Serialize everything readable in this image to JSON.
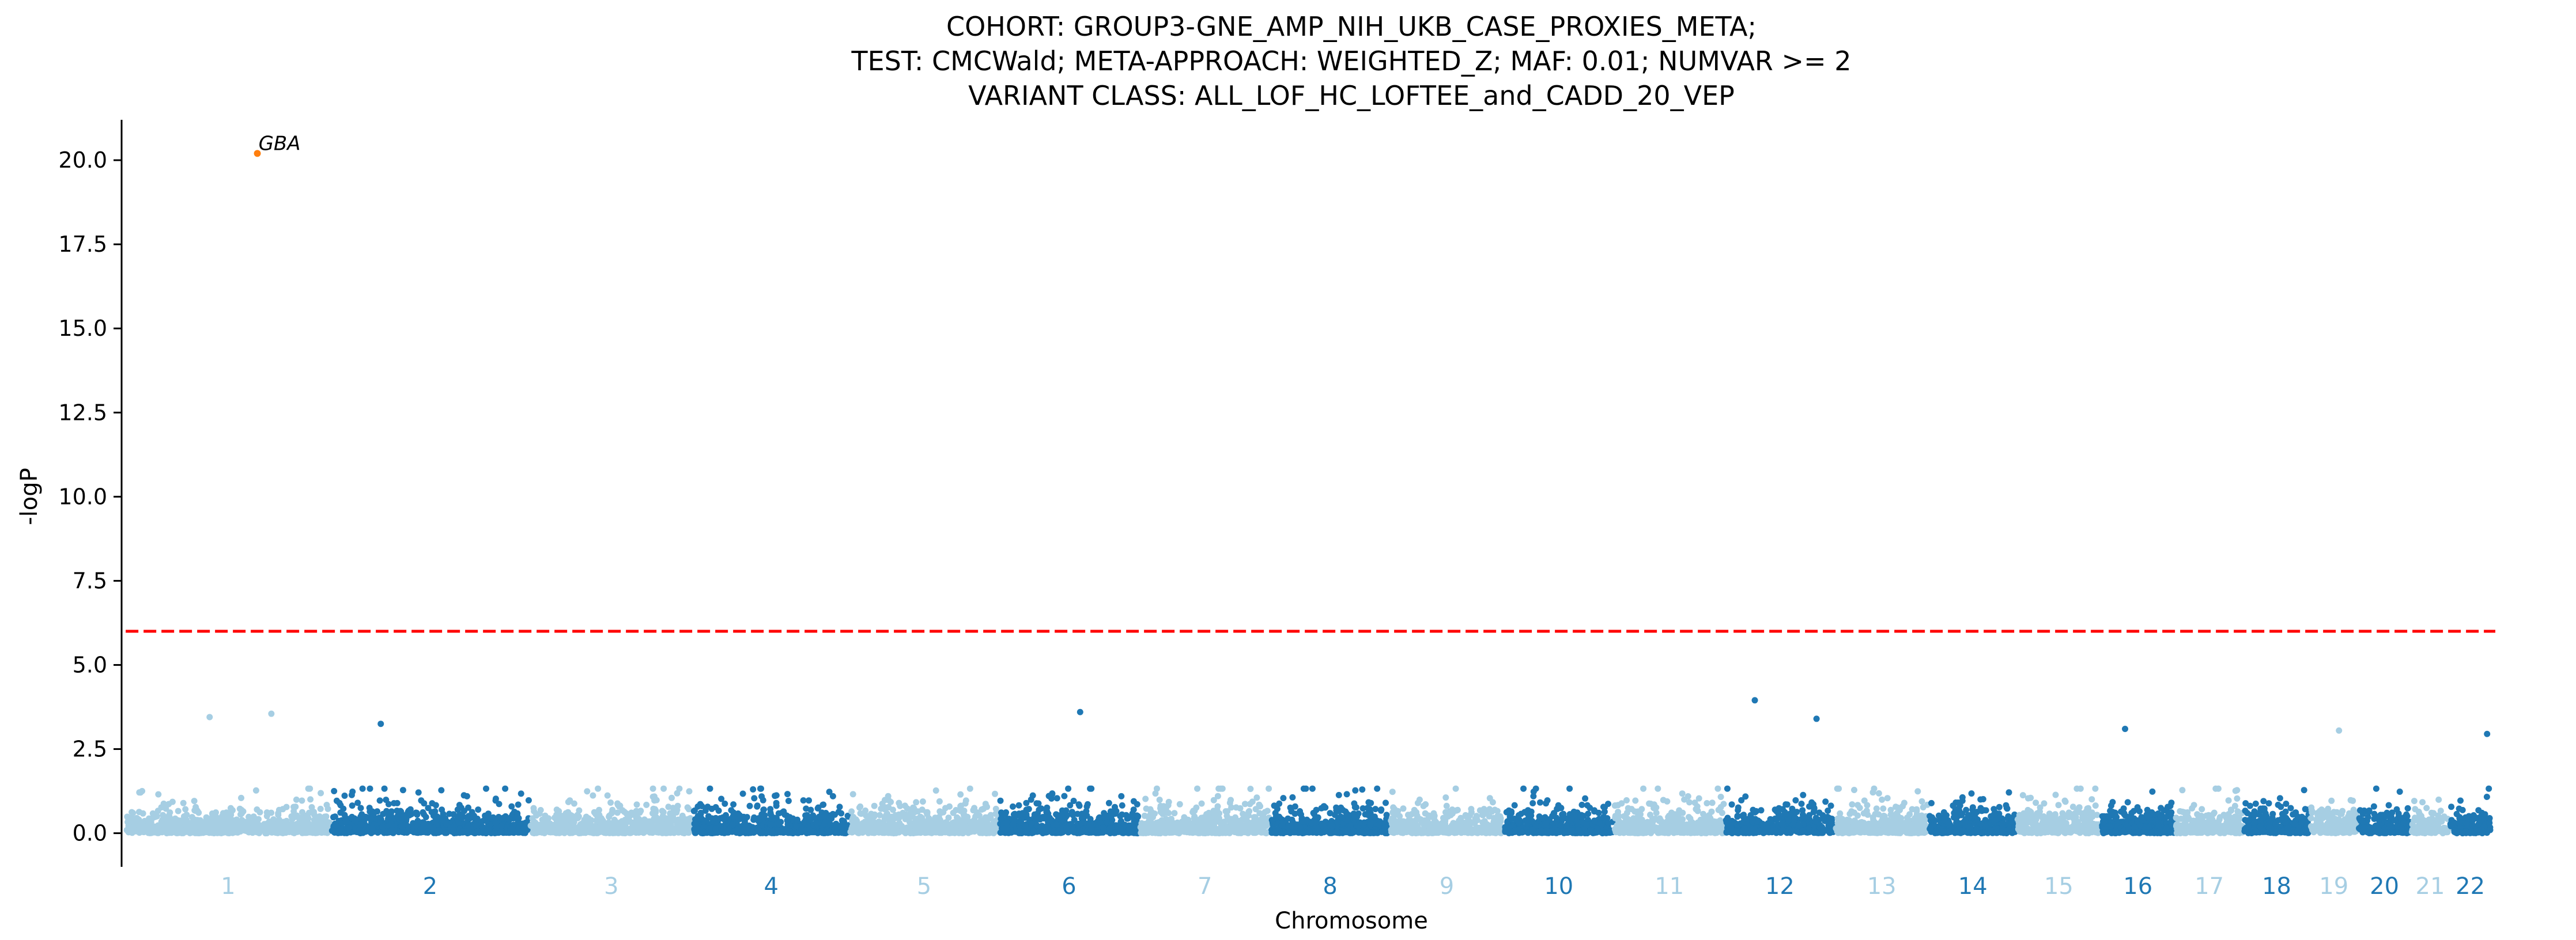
{
  "chart_data": {
    "type": "scatter",
    "subtype": "manhattan",
    "title_lines": [
      "COHORT: GROUP3-GNE_AMP_NIH_UKB_CASE_PROXIES_META;",
      "TEST: CMCWald; META-APPROACH: WEIGHTED_Z; MAF: 0.01; NUMVAR >= 2",
      "VARIANT CLASS: ALL_LOF_HC_LOFTEE_and_CADD_20_VEP"
    ],
    "xlabel": "Chromosome",
    "ylabel": "-logP",
    "ylim": [
      -1.0,
      21.2
    ],
    "yticks": [
      0.0,
      2.5,
      5.0,
      7.5,
      10.0,
      12.5,
      15.0,
      17.5,
      20.0
    ],
    "significance_threshold": 6.0,
    "colors": {
      "light": "#a6cee3",
      "dark": "#1f78b4",
      "threshold": "#ff0000",
      "highlight": "#ff7f0e"
    },
    "chromosomes": [
      {
        "label": "1",
        "start": 0.0,
        "end": 248.9
      },
      {
        "label": "2",
        "start": 248.9,
        "end": 491.1
      },
      {
        "label": "3",
        "start": 491.1,
        "end": 689.4
      },
      {
        "label": "4",
        "start": 689.4,
        "end": 879.6
      },
      {
        "label": "5",
        "start": 879.6,
        "end": 1061.1
      },
      {
        "label": "6",
        "start": 1061.1,
        "end": 1231.9
      },
      {
        "label": "7",
        "start": 1231.9,
        "end": 1391.3
      },
      {
        "label": "8",
        "start": 1391.3,
        "end": 1536.4
      },
      {
        "label": "9",
        "start": 1536.4,
        "end": 1674.8
      },
      {
        "label": "10",
        "start": 1674.8,
        "end": 1808.6
      },
      {
        "label": "11",
        "start": 1808.6,
        "end": 1943.7
      },
      {
        "label": "12",
        "start": 1943.7,
        "end": 2077.0
      },
      {
        "label": "13",
        "start": 2077.0,
        "end": 2191.4
      },
      {
        "label": "14",
        "start": 2191.4,
        "end": 2298.4
      },
      {
        "label": "15",
        "start": 2298.4,
        "end": 2400.4
      },
      {
        "label": "16",
        "start": 2400.4,
        "end": 2490.7
      },
      {
        "label": "17",
        "start": 2490.7,
        "end": 2574.0
      },
      {
        "label": "18",
        "start": 2574.0,
        "end": 2654.4
      },
      {
        "label": "19",
        "start": 2654.4,
        "end": 2713.0
      },
      {
        "label": "20",
        "start": 2713.0,
        "end": 2777.5
      },
      {
        "label": "21",
        "start": 2777.5,
        "end": 2824.2
      },
      {
        "label": "22",
        "start": 2824.2,
        "end": 2875.0
      }
    ],
    "xlim": [
      -5,
      2880
    ],
    "notable_points": [
      {
        "gene": "GBA",
        "chrom": "1",
        "x": 160,
        "y": 20.2,
        "highlight": true
      },
      {
        "chrom": "1",
        "x": 102,
        "y": 3.45
      },
      {
        "chrom": "1",
        "x": 177,
        "y": 3.55
      },
      {
        "chrom": "2",
        "x": 310,
        "y": 3.25
      },
      {
        "chrom": "6",
        "x": 1160,
        "y": 3.6
      },
      {
        "chrom": "12",
        "x": 1980,
        "y": 3.95
      },
      {
        "chrom": "12",
        "x": 2055,
        "y": 3.4
      },
      {
        "chrom": "16",
        "x": 2430,
        "y": 3.1
      },
      {
        "chrom": "19",
        "x": 2690,
        "y": 3.05
      },
      {
        "chrom": "22",
        "x": 2870,
        "y": 2.95
      }
    ]
  }
}
